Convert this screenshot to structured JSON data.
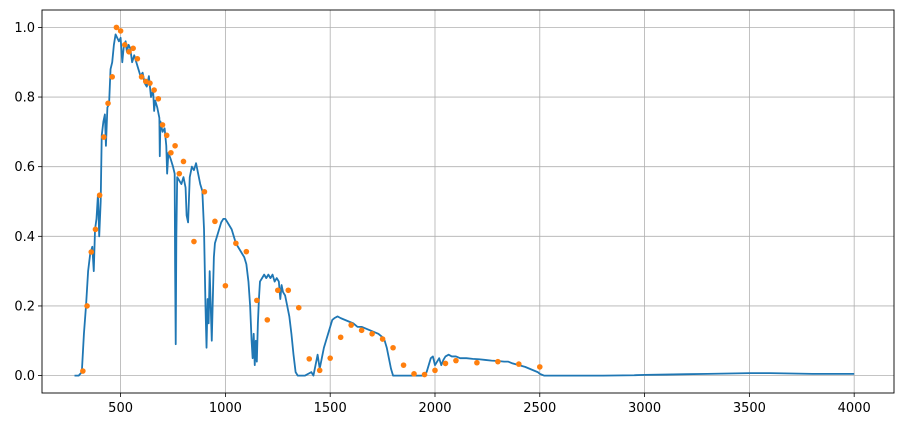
{
  "chart_data": {
    "type": "line",
    "title": "",
    "xlabel": "",
    "ylabel": "",
    "xlim": [
      125,
      4190
    ],
    "ylim": [
      -0.05,
      1.05
    ],
    "grid": true,
    "legend": "none",
    "x_ticks": [
      500,
      1000,
      1500,
      2000,
      2500,
      3000,
      3500,
      4000
    ],
    "x_tick_labels": [
      "500",
      "1000",
      "1500",
      "2000",
      "2500",
      "3000",
      "3500",
      "4000"
    ],
    "y_ticks": [
      0.0,
      0.2,
      0.4,
      0.6,
      0.8,
      1.0
    ],
    "y_tick_labels": [
      "0.0",
      "0.2",
      "0.4",
      "0.6",
      "0.8",
      "1.0"
    ],
    "series": [
      {
        "kind": "line",
        "color": "#1f77b4",
        "points": [
          [
            280,
            0.0
          ],
          [
            300,
            0.0
          ],
          [
            315,
            0.01
          ],
          [
            325,
            0.12
          ],
          [
            335,
            0.2
          ],
          [
            345,
            0.3
          ],
          [
            355,
            0.35
          ],
          [
            365,
            0.37
          ],
          [
            372,
            0.3
          ],
          [
            378,
            0.42
          ],
          [
            385,
            0.45
          ],
          [
            392,
            0.52
          ],
          [
            398,
            0.4
          ],
          [
            405,
            0.5
          ],
          [
            410,
            0.69
          ],
          [
            418,
            0.73
          ],
          [
            425,
            0.75
          ],
          [
            430,
            0.66
          ],
          [
            437,
            0.77
          ],
          [
            445,
            0.78
          ],
          [
            452,
            0.88
          ],
          [
            460,
            0.9
          ],
          [
            468,
            0.95
          ],
          [
            476,
            0.98
          ],
          [
            484,
            0.97
          ],
          [
            492,
            0.96
          ],
          [
            500,
            0.97
          ],
          [
            508,
            0.9
          ],
          [
            516,
            0.95
          ],
          [
            524,
            0.96
          ],
          [
            530,
            0.93
          ],
          [
            538,
            0.95
          ],
          [
            546,
            0.94
          ],
          [
            555,
            0.9
          ],
          [
            565,
            0.92
          ],
          [
            575,
            0.9
          ],
          [
            585,
            0.88
          ],
          [
            595,
            0.86
          ],
          [
            605,
            0.87
          ],
          [
            615,
            0.84
          ],
          [
            625,
            0.83
          ],
          [
            635,
            0.86
          ],
          [
            645,
            0.8
          ],
          [
            655,
            0.82
          ],
          [
            660,
            0.76
          ],
          [
            665,
            0.79
          ],
          [
            675,
            0.77
          ],
          [
            685,
            0.74
          ],
          [
            687,
            0.63
          ],
          [
            690,
            0.73
          ],
          [
            700,
            0.7
          ],
          [
            710,
            0.71
          ],
          [
            718,
            0.66
          ],
          [
            722,
            0.58
          ],
          [
            728,
            0.64
          ],
          [
            740,
            0.62
          ],
          [
            750,
            0.6
          ],
          [
            758,
            0.58
          ],
          [
            760,
            0.32
          ],
          [
            763,
            0.09
          ],
          [
            766,
            0.4
          ],
          [
            770,
            0.57
          ],
          [
            780,
            0.56
          ],
          [
            790,
            0.55
          ],
          [
            800,
            0.57
          ],
          [
            810,
            0.54
          ],
          [
            815,
            0.46
          ],
          [
            822,
            0.44
          ],
          [
            830,
            0.57
          ],
          [
            840,
            0.6
          ],
          [
            850,
            0.59
          ],
          [
            860,
            0.61
          ],
          [
            870,
            0.58
          ],
          [
            880,
            0.55
          ],
          [
            890,
            0.53
          ],
          [
            898,
            0.42
          ],
          [
            905,
            0.2
          ],
          [
            910,
            0.08
          ],
          [
            915,
            0.22
          ],
          [
            920,
            0.15
          ],
          [
            925,
            0.3
          ],
          [
            930,
            0.2
          ],
          [
            935,
            0.1
          ],
          [
            940,
            0.22
          ],
          [
            945,
            0.34
          ],
          [
            950,
            0.38
          ],
          [
            960,
            0.4
          ],
          [
            970,
            0.42
          ],
          [
            980,
            0.44
          ],
          [
            990,
            0.45
          ],
          [
            1000,
            0.45
          ],
          [
            1010,
            0.44
          ],
          [
            1020,
            0.43
          ],
          [
            1030,
            0.42
          ],
          [
            1040,
            0.4
          ],
          [
            1050,
            0.38
          ],
          [
            1060,
            0.37
          ],
          [
            1070,
            0.36
          ],
          [
            1080,
            0.35
          ],
          [
            1090,
            0.34
          ],
          [
            1100,
            0.32
          ],
          [
            1110,
            0.27
          ],
          [
            1118,
            0.2
          ],
          [
            1125,
            0.1
          ],
          [
            1130,
            0.05
          ],
          [
            1135,
            0.12
          ],
          [
            1140,
            0.03
          ],
          [
            1145,
            0.1
          ],
          [
            1150,
            0.04
          ],
          [
            1155,
            0.15
          ],
          [
            1160,
            0.22
          ],
          [
            1165,
            0.27
          ],
          [
            1175,
            0.28
          ],
          [
            1185,
            0.29
          ],
          [
            1195,
            0.28
          ],
          [
            1205,
            0.29
          ],
          [
            1215,
            0.28
          ],
          [
            1225,
            0.29
          ],
          [
            1235,
            0.27
          ],
          [
            1245,
            0.28
          ],
          [
            1255,
            0.27
          ],
          [
            1262,
            0.22
          ],
          [
            1268,
            0.26
          ],
          [
            1275,
            0.24
          ],
          [
            1285,
            0.23
          ],
          [
            1295,
            0.2
          ],
          [
            1305,
            0.17
          ],
          [
            1315,
            0.12
          ],
          [
            1325,
            0.06
          ],
          [
            1335,
            0.01
          ],
          [
            1345,
            0.0
          ],
          [
            1380,
            0.0
          ],
          [
            1410,
            0.01
          ],
          [
            1420,
            0.0
          ],
          [
            1430,
            0.03
          ],
          [
            1440,
            0.06
          ],
          [
            1450,
            0.02
          ],
          [
            1460,
            0.05
          ],
          [
            1470,
            0.08
          ],
          [
            1480,
            0.1
          ],
          [
            1490,
            0.12
          ],
          [
            1500,
            0.14
          ],
          [
            1510,
            0.16
          ],
          [
            1520,
            0.165
          ],
          [
            1535,
            0.17
          ],
          [
            1550,
            0.165
          ],
          [
            1570,
            0.16
          ],
          [
            1590,
            0.155
          ],
          [
            1610,
            0.15
          ],
          [
            1630,
            0.14
          ],
          [
            1650,
            0.14
          ],
          [
            1670,
            0.135
          ],
          [
            1690,
            0.13
          ],
          [
            1710,
            0.125
          ],
          [
            1730,
            0.12
          ],
          [
            1750,
            0.11
          ],
          [
            1760,
            0.1
          ],
          [
            1770,
            0.08
          ],
          [
            1780,
            0.05
          ],
          [
            1790,
            0.02
          ],
          [
            1800,
            0.0
          ],
          [
            1940,
            0.0
          ],
          [
            1960,
            0.01
          ],
          [
            1980,
            0.05
          ],
          [
            1990,
            0.055
          ],
          [
            2000,
            0.03
          ],
          [
            2010,
            0.04
          ],
          [
            2020,
            0.05
          ],
          [
            2030,
            0.03
          ],
          [
            2040,
            0.045
          ],
          [
            2050,
            0.055
          ],
          [
            2065,
            0.06
          ],
          [
            2080,
            0.055
          ],
          [
            2100,
            0.055
          ],
          [
            2120,
            0.05
          ],
          [
            2150,
            0.05
          ],
          [
            2180,
            0.048
          ],
          [
            2210,
            0.047
          ],
          [
            2240,
            0.045
          ],
          [
            2270,
            0.043
          ],
          [
            2300,
            0.042
          ],
          [
            2330,
            0.04
          ],
          [
            2350,
            0.04
          ],
          [
            2370,
            0.035
          ],
          [
            2400,
            0.03
          ],
          [
            2430,
            0.025
          ],
          [
            2450,
            0.02
          ],
          [
            2470,
            0.015
          ],
          [
            2490,
            0.01
          ],
          [
            2500,
            0.005
          ],
          [
            2520,
            0.0
          ],
          [
            2800,
            0.0
          ],
          [
            2950,
            0.001
          ],
          [
            3000,
            0.002
          ],
          [
            3100,
            0.003
          ],
          [
            3200,
            0.004
          ],
          [
            3300,
            0.005
          ],
          [
            3400,
            0.006
          ],
          [
            3500,
            0.007
          ],
          [
            3600,
            0.007
          ],
          [
            3700,
            0.006
          ],
          [
            3800,
            0.005
          ],
          [
            3900,
            0.005
          ],
          [
            4000,
            0.005
          ]
        ]
      },
      {
        "kind": "scatter",
        "color": "#ff7f0e",
        "points": [
          [
            320,
            0.013
          ],
          [
            340,
            0.2
          ],
          [
            360,
            0.355
          ],
          [
            380,
            0.42
          ],
          [
            400,
            0.518
          ],
          [
            420,
            0.685
          ],
          [
            440,
            0.782
          ],
          [
            460,
            0.858
          ],
          [
            480,
            1.0
          ],
          [
            500,
            0.99
          ],
          [
            520,
            0.95
          ],
          [
            540,
            0.93
          ],
          [
            560,
            0.94
          ],
          [
            580,
            0.91
          ],
          [
            600,
            0.858
          ],
          [
            620,
            0.845
          ],
          [
            640,
            0.84
          ],
          [
            660,
            0.82
          ],
          [
            680,
            0.795
          ],
          [
            700,
            0.72
          ],
          [
            720,
            0.69
          ],
          [
            740,
            0.64
          ],
          [
            760,
            0.66
          ],
          [
            780,
            0.58
          ],
          [
            800,
            0.615
          ],
          [
            850,
            0.385
          ],
          [
            900,
            0.528
          ],
          [
            950,
            0.443
          ],
          [
            1000,
            0.258
          ],
          [
            1050,
            0.38
          ],
          [
            1100,
            0.356
          ],
          [
            1150,
            0.216
          ],
          [
            1200,
            0.16
          ],
          [
            1250,
            0.245
          ],
          [
            1300,
            0.245
          ],
          [
            1350,
            0.195
          ],
          [
            1400,
            0.048
          ],
          [
            1450,
            0.015
          ],
          [
            1500,
            0.05
          ],
          [
            1550,
            0.11
          ],
          [
            1600,
            0.145
          ],
          [
            1650,
            0.13
          ],
          [
            1700,
            0.12
          ],
          [
            1750,
            0.105
          ],
          [
            1800,
            0.08
          ],
          [
            1850,
            0.03
          ],
          [
            1900,
            0.005
          ],
          [
            1950,
            0.003
          ],
          [
            2000,
            0.015
          ],
          [
            2050,
            0.035
          ],
          [
            2100,
            0.043
          ],
          [
            2200,
            0.037
          ],
          [
            2300,
            0.04
          ],
          [
            2400,
            0.033
          ],
          [
            2500,
            0.025
          ]
        ]
      }
    ]
  }
}
